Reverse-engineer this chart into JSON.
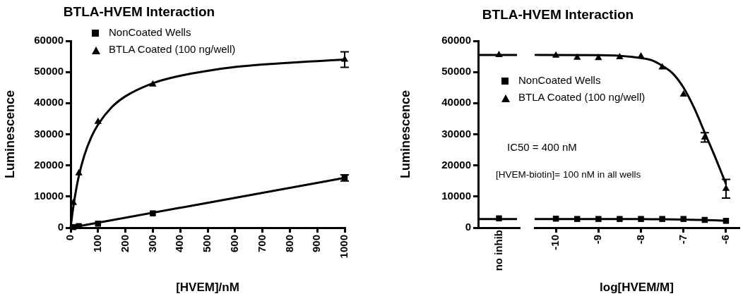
{
  "chart_data": [
    {
      "type": "scatter",
      "title": "BTLA-HVEM Interaction",
      "xlabel": "[HVEM]/nM",
      "ylabel": "Luminescence",
      "xlim": [
        0,
        1000
      ],
      "xticks": [
        0,
        100,
        200,
        300,
        400,
        500,
        600,
        700,
        800,
        900,
        1000
      ],
      "ylim": [
        0,
        60000
      ],
      "yticks": [
        0,
        10000,
        20000,
        30000,
        40000,
        50000,
        60000
      ],
      "grid": false,
      "legend": "top left",
      "series": [
        {
          "name": "NonCoated Wells",
          "type": "scatter",
          "marker": "square",
          "color": "#000000",
          "x": [
            10,
            30,
            100,
            300,
            1000
          ],
          "values": [
            200,
            500,
            1300,
            4600,
            16000
          ],
          "errors": [
            null,
            null,
            null,
            null,
            1000
          ]
        },
        {
          "name": "BTLA Coated (100 ng/well)",
          "type": "scatter",
          "marker": "triangle",
          "color": "#000000",
          "x": [
            10,
            30,
            100,
            300,
            1000
          ],
          "values": [
            8000,
            17500,
            34000,
            46000,
            54000
          ],
          "errors": [
            null,
            null,
            null,
            null,
            2500
          ]
        },
        {
          "type": "line",
          "color": "#000000",
          "x": [
            0,
            1000
          ],
          "values": [
            0,
            16000
          ]
        },
        {
          "type": "line",
          "color": "#000000",
          "x": [
            0,
            5,
            10,
            20,
            30,
            50,
            75,
            100,
            150,
            200,
            300,
            400,
            500,
            600,
            700,
            800,
            900,
            1000
          ],
          "values": [
            0,
            3600,
            6800,
            12200,
            16600,
            23200,
            29000,
            33100,
            38700,
            42200,
            46400,
            48800,
            50400,
            51600,
            52400,
            53000,
            53500,
            54000
          ]
        }
      ]
    },
    {
      "type": "scatter",
      "ylabel": "Luminescence",
      "categories": [
        "no inhib"
      ],
      "ylim": [
        0,
        60000
      ],
      "yticks": [
        0,
        10000,
        20000,
        30000,
        40000,
        50000,
        60000
      ],
      "grid": false,
      "series": [
        {
          "type": "scatter",
          "marker": "square",
          "color": "#000000",
          "values": [
            3000
          ]
        },
        {
          "type": "scatter",
          "marker": "triangle",
          "color": "#000000",
          "values": [
            55500
          ]
        }
      ],
      "ref_lines": [
        {
          "axis": "y",
          "value": 2800
        },
        {
          "axis": "y",
          "value": 55500
        }
      ]
    },
    {
      "type": "scatter",
      "title": "BTLA-HVEM Interaction",
      "xlabel": "log[HVEM/M]",
      "xlim": [
        -10.5,
        -5.7
      ],
      "xticks": [
        -10,
        -9,
        -8,
        -7,
        -6
      ],
      "ylim": [
        0,
        60000
      ],
      "grid": false,
      "tick_labels": "x",
      "legend": "left",
      "annotations": [
        "IC50 = 400 nM",
        "[HVEM-biotin]= 100 nM in all wells"
      ],
      "series": [
        {
          "name": "NonCoated Wells",
          "type": "scatter",
          "marker": "square",
          "color": "#000000",
          "x": [
            -10,
            -9.5,
            -9,
            -8.5,
            -8,
            -7.5,
            -7,
            -6.5,
            -6
          ],
          "values": [
            2900,
            2800,
            2800,
            2800,
            2800,
            2800,
            2800,
            2500,
            2200
          ]
        },
        {
          "name": "BTLA Coated (100 ng/well)",
          "type": "scatter",
          "marker": "triangle",
          "color": "#000000",
          "x": [
            -10,
            -9.5,
            -9,
            -8.5,
            -8,
            -7.5,
            -7,
            -6.5,
            -6
          ],
          "values": [
            55300,
            54600,
            54500,
            54800,
            55000,
            51500,
            42800,
            29000,
            12500
          ],
          "errors": [
            null,
            null,
            null,
            null,
            null,
            null,
            null,
            1500,
            3000
          ]
        },
        {
          "type": "line",
          "color": "#000000",
          "x": [
            -10.5,
            -8,
            -7.5,
            -7,
            -6.5,
            -6
          ],
          "values": [
            2800,
            2800,
            2700,
            2600,
            2500,
            2200
          ]
        },
        {
          "type": "line",
          "color": "#000000",
          "x": [
            -10.5,
            -9,
            -8.5,
            -8,
            -7.75,
            -7.5,
            -7.25,
            -7,
            -6.75,
            -6.5,
            -6.25,
            -6
          ],
          "values": [
            55500,
            55400,
            55200,
            54500,
            53800,
            52000,
            49500,
            45000,
            38500,
            30500,
            22500,
            14000
          ]
        }
      ]
    }
  ]
}
